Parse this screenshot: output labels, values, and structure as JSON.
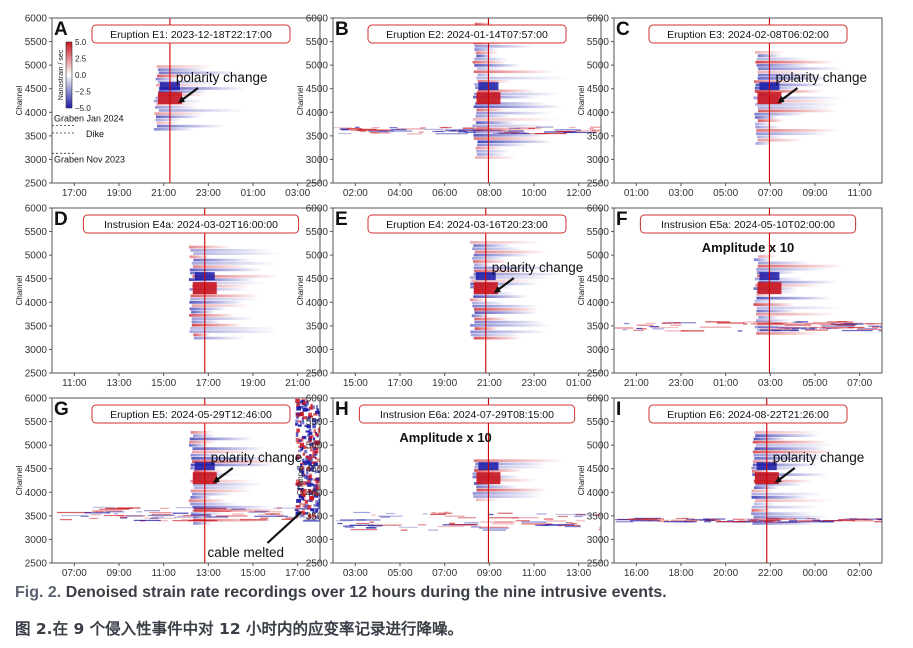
{
  "caption_en_number": "Fig. 2.",
  "caption_en_text": "Denoised strain rate recordings over 12 hours during the nine intrusive events.",
  "caption_zh": "图 2.在 9 个侵入性事件中对 12 小时内的应变率记录进行降噪。",
  "colors": {
    "pos": "#c8141e",
    "neg": "#1a1aa8",
    "eventline": "#d00000",
    "box": "#d23030",
    "frame": "#555555"
  },
  "chart_data": {
    "type": "heatmap",
    "title": "",
    "ylabel": "Channel",
    "ylim": [
      2500,
      6000
    ],
    "yticks": [
      2500,
      3000,
      3500,
      4000,
      4500,
      5000,
      5500,
      6000
    ],
    "colorbar": {
      "label": "Nanostrain / sec",
      "ticks": [
        "5.0",
        "2.5",
        "0.0",
        "−2.5",
        "−5.0"
      ],
      "range": [
        -5,
        5
      ]
    },
    "features_panel_A": [
      {
        "label": "Graben Jan 2024",
        "channel": 3720
      },
      {
        "label": "Dike",
        "channel": 3560
      },
      {
        "label": "Graben Nov 2023",
        "channel": 3130
      }
    ],
    "panels": [
      {
        "id": "A",
        "box": "Eruption E1: 2023-12-18T22:17:00",
        "xticks": [
          "17:00",
          "19:00",
          "21:00",
          "23:00",
          "01:00",
          "03:00"
        ],
        "event_frac": 0.44,
        "signal_band": [
          3600,
          5000
        ],
        "noise_band": null,
        "annotations": [
          "polarity change"
        ],
        "extra": null
      },
      {
        "id": "B",
        "box": "Eruption E2: 2024-01-14T07:57:00",
        "xticks": [
          "02:00",
          "04:00",
          "06:00",
          "08:00",
          "10:00",
          "12:00"
        ],
        "event_frac": 0.58,
        "signal_band": [
          3000,
          5900
        ],
        "noise_band": [
          3550,
          3700
        ],
        "annotations": [],
        "extra": null
      },
      {
        "id": "C",
        "box": "Eruption E3: 2024-02-08T06:02:00",
        "xticks": [
          "01:00",
          "03:00",
          "05:00",
          "07:00",
          "09:00",
          "11:00"
        ],
        "event_frac": 0.58,
        "signal_band": [
          3300,
          5300
        ],
        "noise_band": null,
        "annotations": [
          "polarity change"
        ],
        "extra": null
      },
      {
        "id": "D",
        "box": "Instrusion E4a: 2024-03-02T16:00:00",
        "xticks": [
          "11:00",
          "13:00",
          "15:00",
          "17:00",
          "19:00",
          "21:00"
        ],
        "event_frac": 0.57,
        "signal_band": [
          3200,
          5200
        ],
        "noise_band": null,
        "annotations": [],
        "extra": null
      },
      {
        "id": "E",
        "box": "Eruption E4: 2024-03-16T20:23:00",
        "xticks": [
          "15:00",
          "17:00",
          "19:00",
          "21:00",
          "23:00",
          "01:00"
        ],
        "event_frac": 0.57,
        "signal_band": [
          3200,
          5300
        ],
        "noise_band": null,
        "annotations": [
          "polarity change"
        ],
        "extra": null
      },
      {
        "id": "F",
        "box": "Instrusion E5a: 2024-05-10T02:00:00",
        "xticks": [
          "21:00",
          "23:00",
          "01:00",
          "03:00",
          "05:00",
          "07:00"
        ],
        "event_frac": 0.58,
        "signal_band": [
          3300,
          5000
        ],
        "noise_band": [
          3400,
          3600
        ],
        "annotations": [],
        "extra": "Amplitude x 10"
      },
      {
        "id": "G",
        "box": "Eruption E5: 2024-05-29T12:46:00",
        "xticks": [
          "07:00",
          "09:00",
          "11:00",
          "13:00",
          "15:00",
          "17:00"
        ],
        "event_frac": 0.57,
        "signal_band": [
          3300,
          5300
        ],
        "noise_band": [
          3400,
          3700
        ],
        "annotations": [
          "polarity change",
          "cable melted"
        ],
        "extra": null
      },
      {
        "id": "H",
        "box": "Instrusion E6a: 2024-07-29T08:15:00",
        "xticks": [
          "03:00",
          "05:00",
          "07:00",
          "09:00",
          "11:00",
          "13:00"
        ],
        "event_frac": 0.58,
        "signal_band": [
          3800,
          4700
        ],
        "noise_band": [
          3200,
          3600
        ],
        "annotations": [],
        "extra": "Amplitude x 10"
      },
      {
        "id": "I",
        "box": "Eruption E6: 2024-08-22T21:26:00",
        "xticks": [
          "16:00",
          "18:00",
          "20:00",
          "22:00",
          "00:00",
          "02:00"
        ],
        "event_frac": 0.57,
        "signal_band": [
          3300,
          5300
        ],
        "noise_band": [
          3380,
          3460
        ],
        "annotations": [
          "polarity change"
        ],
        "extra": null
      }
    ]
  }
}
